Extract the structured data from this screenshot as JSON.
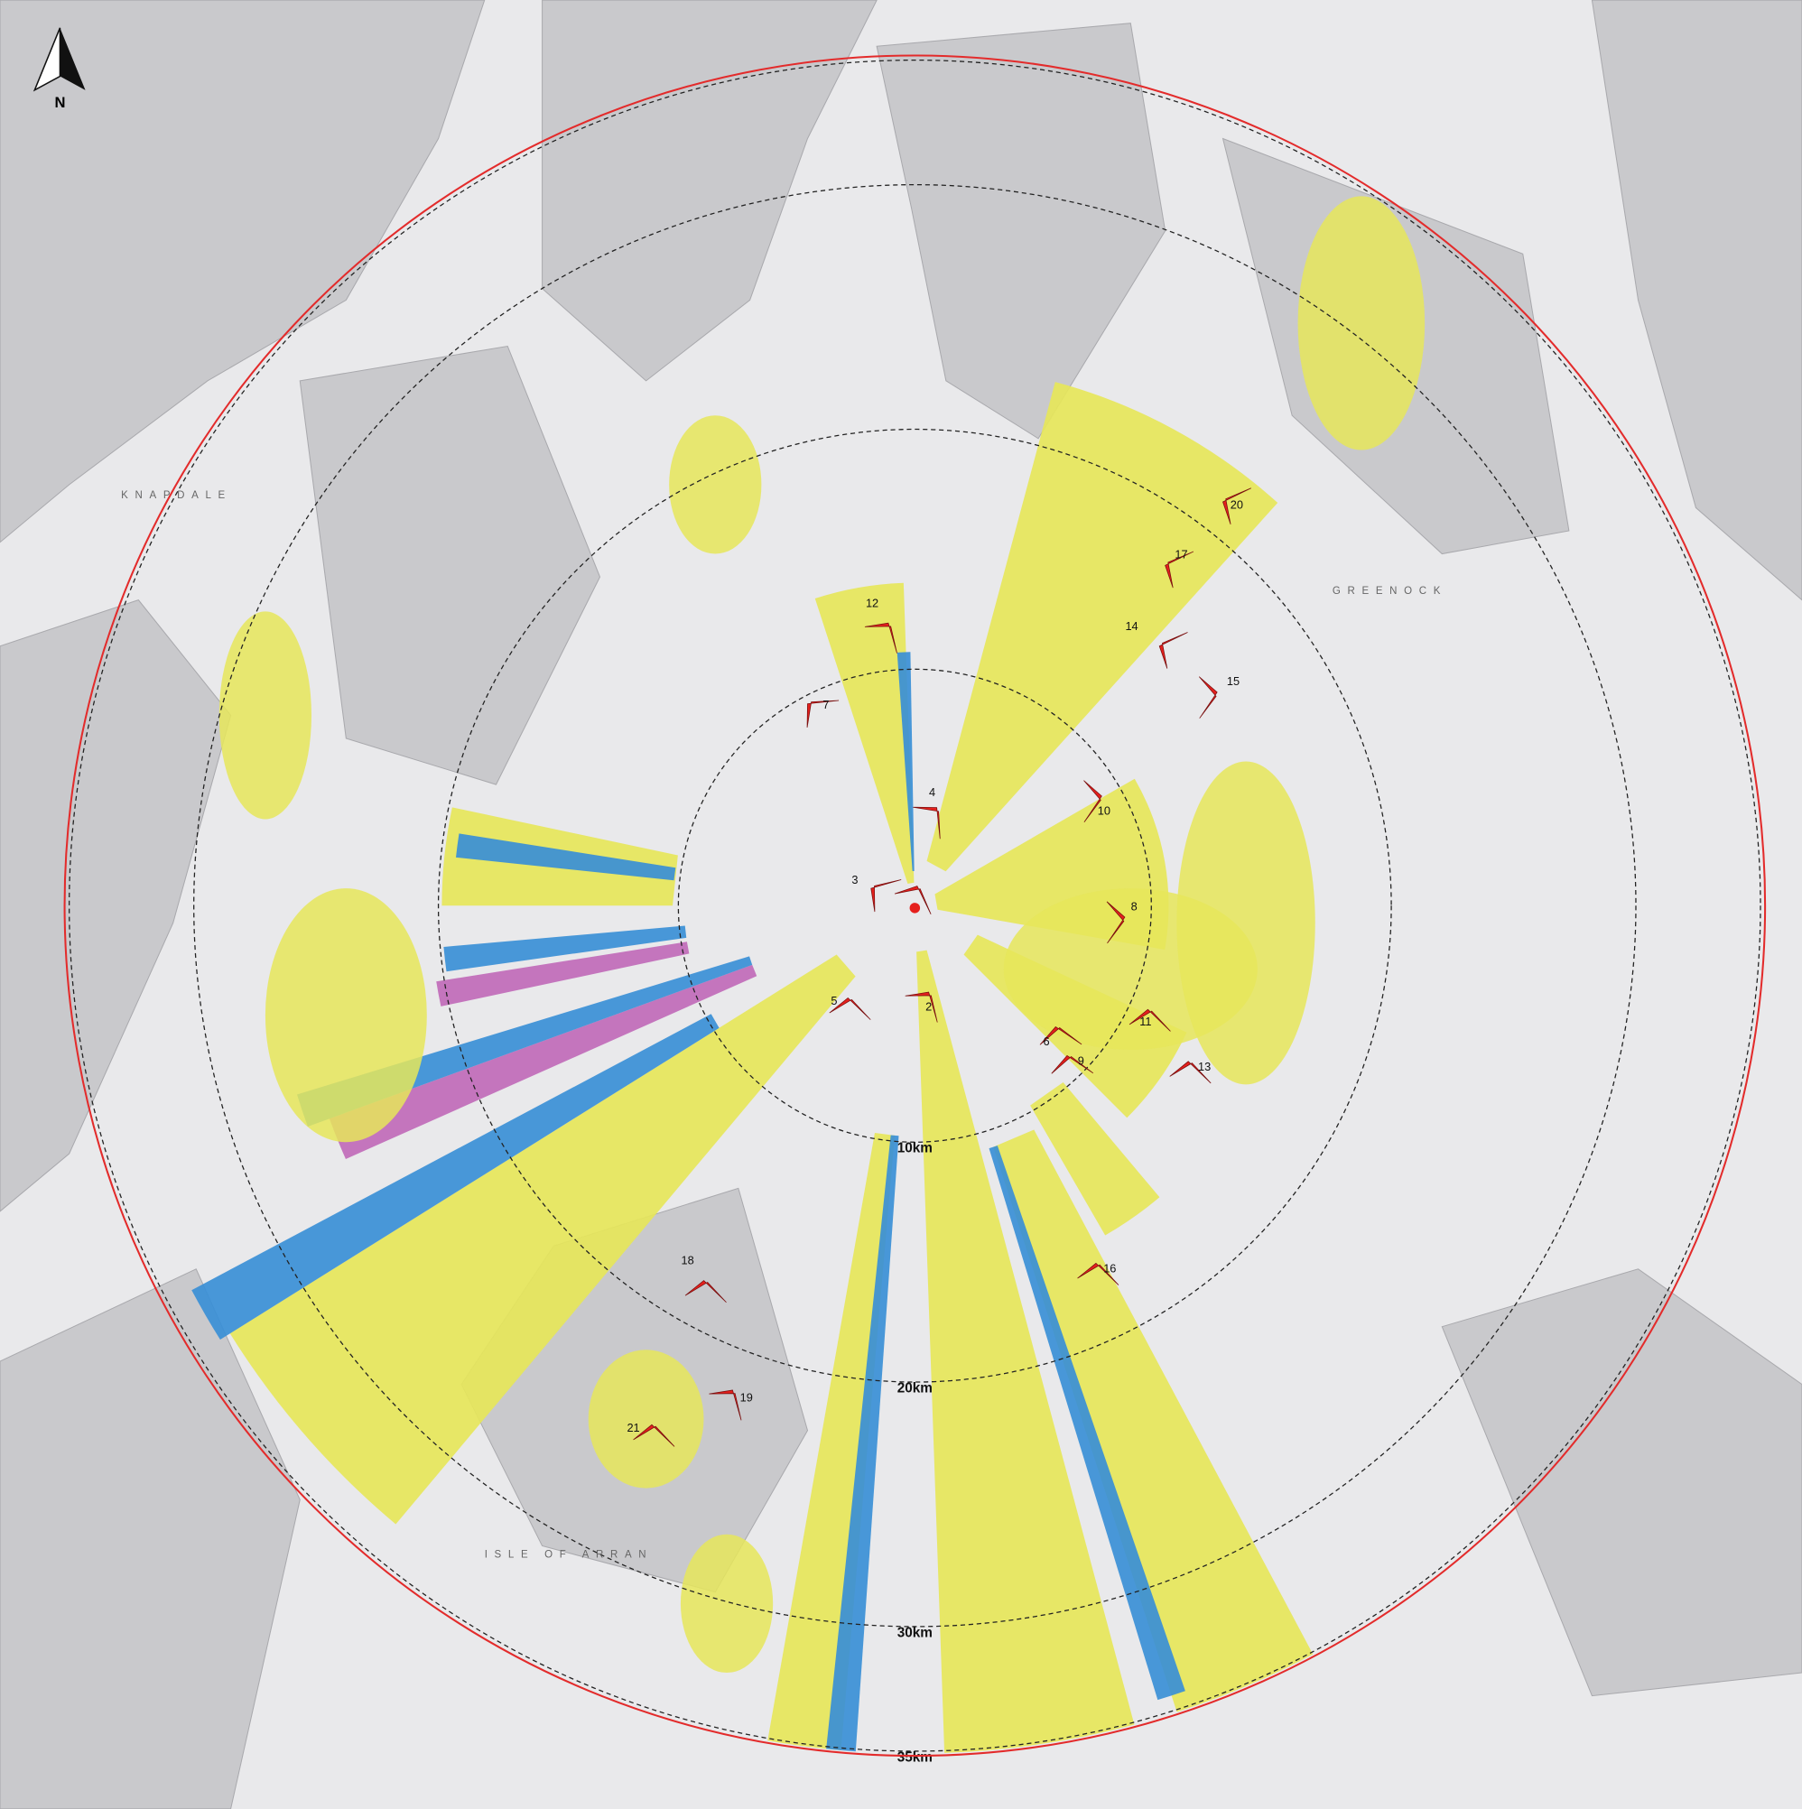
{
  "north": "N",
  "rings": [
    {
      "label": "10km"
    },
    {
      "label": "20km"
    },
    {
      "label": "30km"
    },
    {
      "label": "35km"
    }
  ],
  "viewpoints": [
    {
      "label": "2"
    },
    {
      "label": "3"
    },
    {
      "label": "4"
    },
    {
      "label": "5"
    },
    {
      "label": "6"
    },
    {
      "label": "7"
    },
    {
      "label": "8"
    },
    {
      "label": "9"
    },
    {
      "label": "10"
    },
    {
      "label": "11"
    },
    {
      "label": "12"
    },
    {
      "label": "13"
    },
    {
      "label": "14"
    },
    {
      "label": "15"
    },
    {
      "label": "16"
    },
    {
      "label": "17"
    },
    {
      "label": "18"
    },
    {
      "label": "19"
    },
    {
      "label": "20"
    },
    {
      "label": "21"
    }
  ],
  "places": [
    {
      "label": "ISLE OF ARRAN"
    },
    {
      "label": "GREENOCK"
    },
    {
      "label": "KNAPDALE"
    }
  ]
}
